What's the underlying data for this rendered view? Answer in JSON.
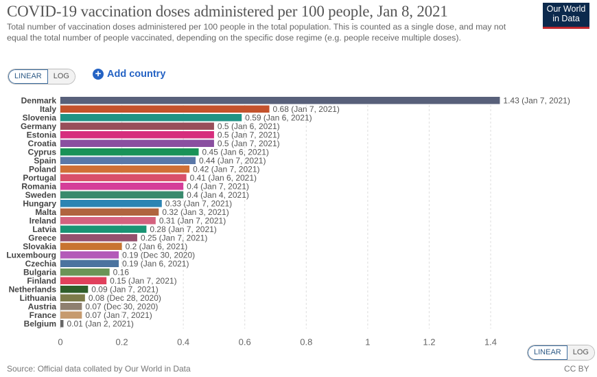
{
  "header": {
    "title": "COVID-19 vaccination doses administered per 100 people, Jan 8, 2021",
    "subtitle": "Total number of vaccination doses administered per 100 people in the total population. This is counted as a single dose, and may not equal the total number of people vaccinated, depending on the specific dose regime (e.g. people receive multiple doses).",
    "logo_line1": "Our World",
    "logo_line2": "in Data"
  },
  "controls": {
    "linear_label": "LINEAR",
    "log_label": "LOG",
    "add_country_label": "Add country",
    "add_icon": "plus-circle-icon"
  },
  "footer": {
    "source": "Source: Official data collated by Our World in Data",
    "license": "CC BY",
    "linear_label": "LINEAR",
    "log_label": "LOG"
  },
  "chart_data": {
    "type": "bar",
    "orientation": "horizontal",
    "xlim": [
      0,
      1.4
    ],
    "x_ticks": [
      "0",
      "0.2",
      "0.4",
      "0.6",
      "0.8",
      "1",
      "1.2",
      "1.4"
    ],
    "grid": "vertical dashed",
    "scale": "linear",
    "categories": [
      "Denmark",
      "Italy",
      "Slovenia",
      "Germany",
      "Estonia",
      "Croatia",
      "Cyprus",
      "Spain",
      "Poland",
      "Portugal",
      "Romania",
      "Sweden",
      "Hungary",
      "Malta",
      "Ireland",
      "Latvia",
      "Greece",
      "Slovakia",
      "Luxembourg",
      "Czechia",
      "Bulgaria",
      "Finland",
      "Netherlands",
      "Lithuania",
      "Austria",
      "France",
      "Belgium"
    ],
    "values": [
      1.43,
      0.68,
      0.59,
      0.5,
      0.5,
      0.5,
      0.45,
      0.44,
      0.42,
      0.41,
      0.4,
      0.4,
      0.33,
      0.32,
      0.31,
      0.28,
      0.25,
      0.2,
      0.19,
      0.19,
      0.16,
      0.15,
      0.09,
      0.08,
      0.07,
      0.07,
      0.01
    ],
    "dates": [
      "Jan 7, 2021",
      "Jan 7, 2021",
      "Jan 6, 2021",
      "Jan 6, 2021",
      "Jan 7, 2021",
      "Jan 7, 2021",
      "Jan 6, 2021",
      "Jan 7, 2021",
      "Jan 7, 2021",
      "Jan 6, 2021",
      "Jan 7, 2021",
      "Jan 4, 2021",
      "Jan 7, 2021",
      "Jan 3, 2021",
      "Jan 7, 2021",
      "Jan 7, 2021",
      "Jan 7, 2021",
      "Jan 6, 2021",
      "Dec 30, 2020",
      "Jan 6, 2021",
      "",
      "Jan 7, 2021",
      "Jan 7, 2021",
      "Dec 28, 2020",
      "Dec 30, 2020",
      "Jan 7, 2021",
      "Jan 2, 2021"
    ],
    "colors": [
      "#58607a",
      "#c4522c",
      "#1f9385",
      "#984e5a",
      "#d62d7d",
      "#8a4fa0",
      "#1a9257",
      "#5a78a8",
      "#d07036",
      "#d9506a",
      "#d53d99",
      "#398a6d",
      "#2c84b3",
      "#b0643f",
      "#d4627f",
      "#1a9474",
      "#94506e",
      "#c87430",
      "#b35ab8",
      "#4b739f",
      "#6b9457",
      "#e0405c",
      "#2f5e2a",
      "#7c7b4a",
      "#8f8070",
      "#c69a6e",
      "#666666"
    ]
  }
}
